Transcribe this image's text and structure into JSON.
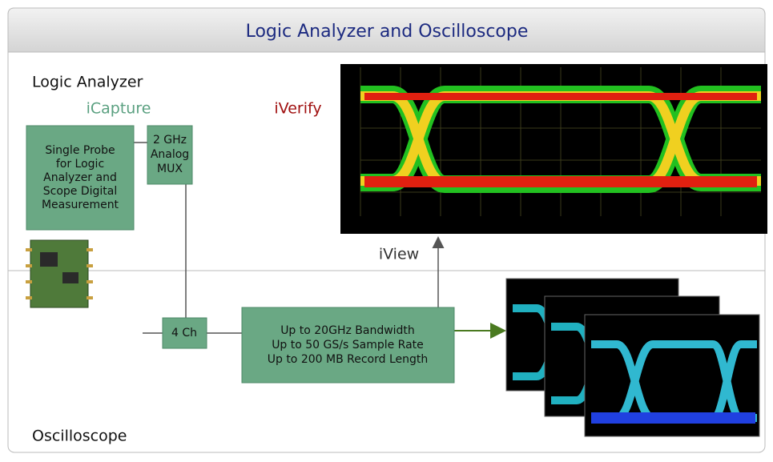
{
  "header": {
    "title": "Logic Analyzer and Oscilloscope"
  },
  "sections": {
    "logic_analyzer": "Logic Analyzer",
    "oscilloscope": "Oscilloscope"
  },
  "labels": {
    "icapture": "iCapture",
    "iverify": "iVerify",
    "iview": "iView"
  },
  "nodes": [
    {
      "lines": [
        "Single Probe",
        "for Logic",
        "Analyzer and",
        "Scope Digital",
        "Measurement"
      ]
    },
    {
      "lines": [
        "2 GHz",
        "Analog",
        "MUX"
      ]
    },
    {
      "lines": [
        "4 Ch"
      ]
    },
    {
      "lines": [
        "Up to 20GHz Bandwidth",
        "Up to 50 GS/s Sample Rate",
        "Up to 200 MB Record Length"
      ]
    }
  ]
}
